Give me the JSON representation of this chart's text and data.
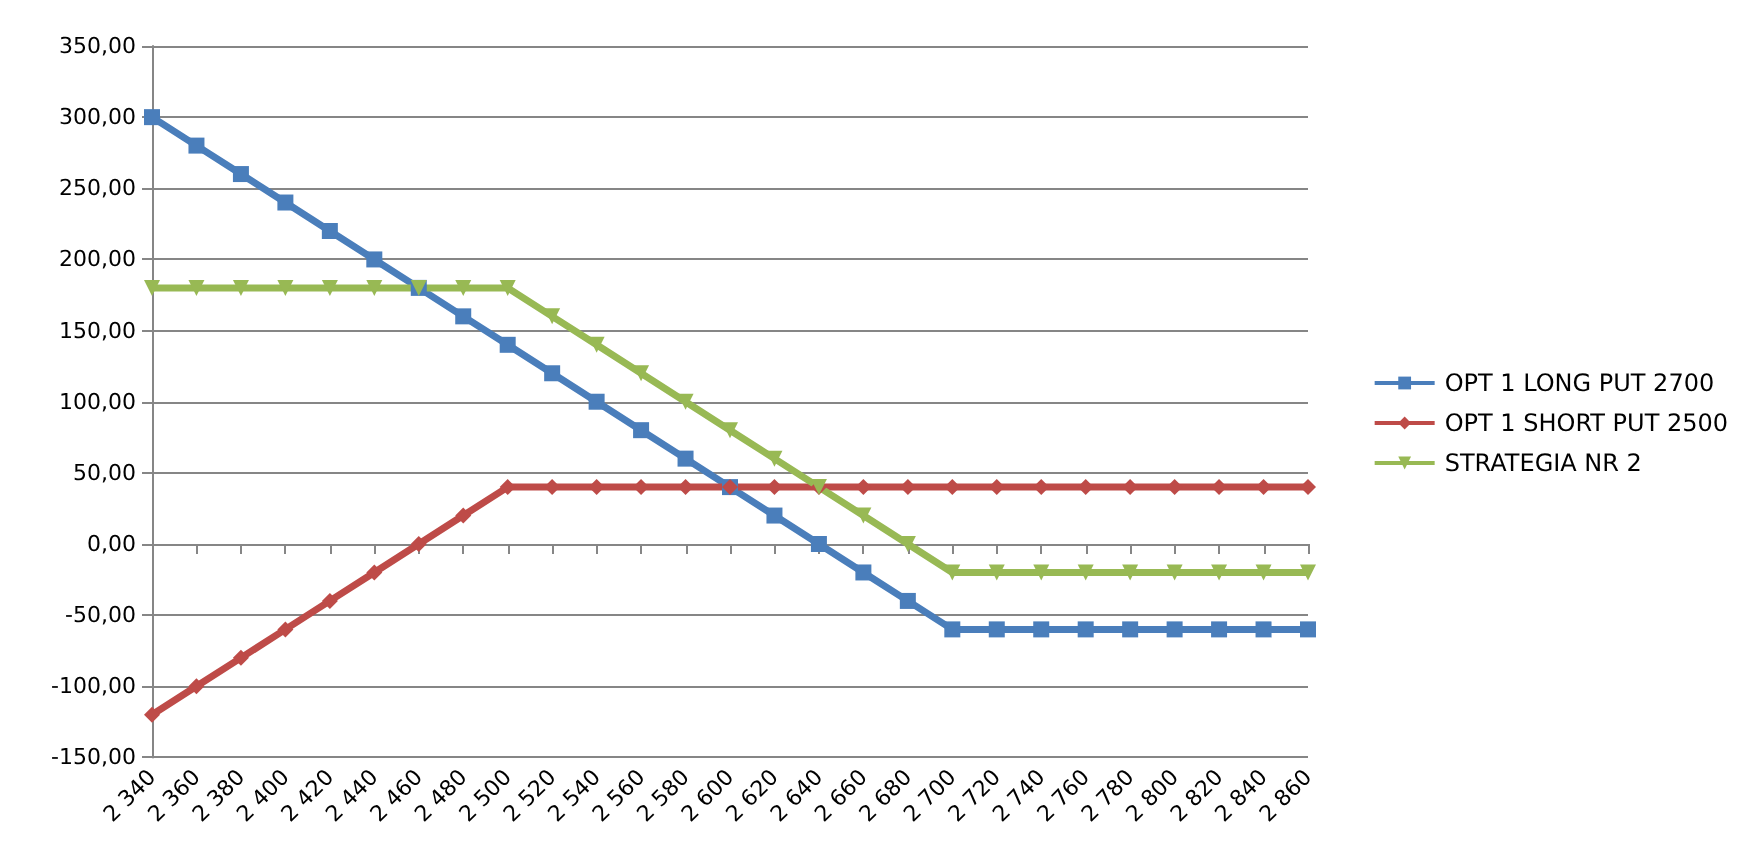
{
  "chart_data": {
    "type": "line",
    "categories": [
      "2 340",
      "2 360",
      "2 380",
      "2 400",
      "2 420",
      "2 440",
      "2 460",
      "2 480",
      "2 500",
      "2 520",
      "2 540",
      "2 560",
      "2 580",
      "2 600",
      "2 620",
      "2 640",
      "2 660",
      "2 680",
      "2 700",
      "2 720",
      "2 740",
      "2 760",
      "2 780",
      "2 800",
      "2 820",
      "2 840",
      "2 860"
    ],
    "series": [
      {
        "name": "OPT 1 LONG PUT 2700",
        "color": "#4a7ebb",
        "marker": "square",
        "values": [
          300,
          280,
          260,
          240,
          220,
          200,
          180,
          160,
          140,
          120,
          100,
          80,
          60,
          40,
          20,
          0,
          -20,
          -40,
          -60,
          -60,
          -60,
          -60,
          -60,
          -60,
          -60,
          -60,
          -60
        ]
      },
      {
        "name": "OPT 1 SHORT PUT 2500",
        "color": "#be4b48",
        "marker": "diamond",
        "values": [
          -120,
          -100,
          -80,
          -60,
          -40,
          -20,
          0,
          20,
          40,
          40,
          40,
          40,
          40,
          40,
          40,
          40,
          40,
          40,
          40,
          40,
          40,
          40,
          40,
          40,
          40,
          40,
          40
        ]
      },
      {
        "name": "STRATEGIA NR 2",
        "color": "#98b954",
        "marker": "triangle",
        "values": [
          180,
          180,
          180,
          180,
          180,
          180,
          180,
          180,
          180,
          160,
          140,
          120,
          100,
          80,
          60,
          40,
          20,
          0,
          -20,
          -20,
          -20,
          -20,
          -20,
          -20,
          -20,
          -20,
          -20
        ]
      }
    ],
    "ylim": [
      -150,
      350
    ],
    "yticks": [
      {
        "value": -150,
        "label": "-150,00"
      },
      {
        "value": -100,
        "label": "-100,00"
      },
      {
        "value": -50,
        "label": "-50,00"
      },
      {
        "value": 0,
        "label": "0,00"
      },
      {
        "value": 50,
        "label": "50,00"
      },
      {
        "value": 100,
        "label": "100,00"
      },
      {
        "value": 150,
        "label": "150,00"
      },
      {
        "value": 200,
        "label": "200,00"
      },
      {
        "value": 250,
        "label": "250,00"
      },
      {
        "value": 300,
        "label": "300,00"
      },
      {
        "value": 350,
        "label": "350,00"
      }
    ],
    "grid": "y",
    "legend": "right",
    "line_style": "solid"
  }
}
